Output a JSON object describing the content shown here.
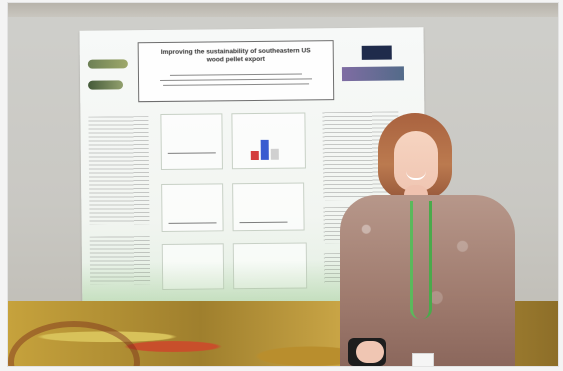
{
  "image": {
    "scene": "woman standing next to a research poster",
    "poster": {
      "title_line_1": "Improving the sustainability of southeastern US",
      "title_line_2": "wood pellet export"
    }
  },
  "icons": {
    "photo": "photo-icon"
  },
  "colors": {
    "poster_accent": "#4aaa4b",
    "carpet": "#c6a23c",
    "hair": "#b56f45",
    "top": "#a78274"
  }
}
